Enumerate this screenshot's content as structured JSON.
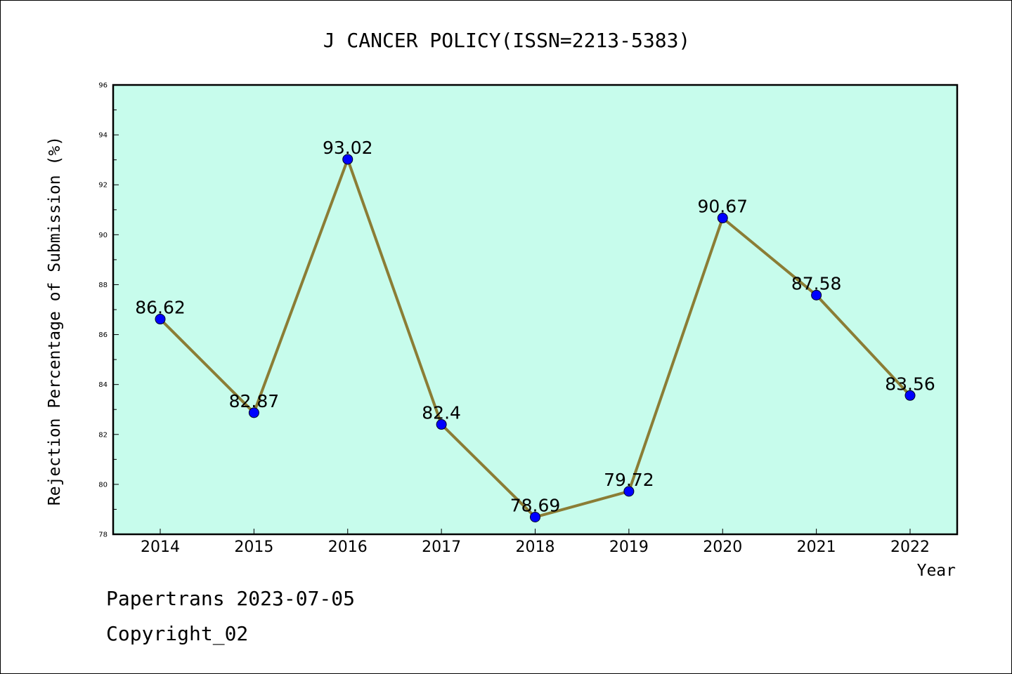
{
  "chart_data": {
    "type": "line",
    "title": "J CANCER POLICY(ISSN=2213-5383)",
    "xlabel": "Year",
    "ylabel": "Rejection Percentage of Submission (%)",
    "categories": [
      "2014",
      "2015",
      "2016",
      "2017",
      "2018",
      "2019",
      "2020",
      "2021",
      "2022"
    ],
    "series": [
      {
        "values": [
          86.62,
          82.87,
          93.02,
          82.4,
          78.69,
          79.72,
          90.67,
          87.58,
          83.56
        ],
        "data_labels": [
          "86.62",
          "82.87",
          "93.02",
          "82.4",
          "78.69",
          "79.72",
          "90.67",
          "87.58",
          "83.56"
        ]
      }
    ],
    "ylim": [
      78,
      96
    ],
    "yticks": [
      "78",
      "80",
      "82",
      "84",
      "86",
      "88",
      "90",
      "92",
      "94",
      "96"
    ],
    "grid": false,
    "legend": "none",
    "colors": {
      "plot_background": "#c7fcec",
      "line": "#8b7d35",
      "marker": "#0000ff"
    }
  },
  "footer": {
    "date_line": "Papertrans 2023-07-05",
    "copyright_line": "Copyright_02"
  }
}
